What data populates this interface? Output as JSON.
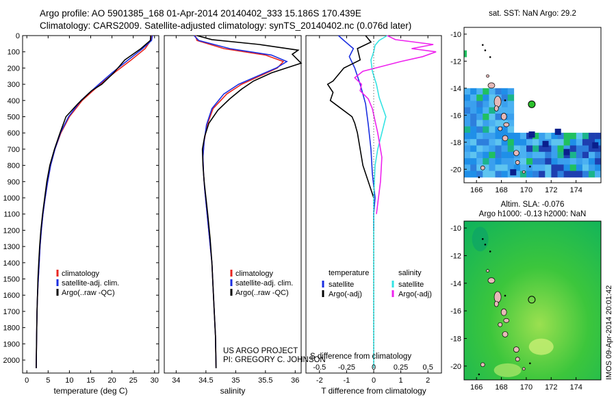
{
  "header": {
    "line1": "Argo profile: AO 5901385_168 01-Apr-2014 20140402_333 15.186S 170.439E",
    "line2": "Climatology: CARS2009. Satellite-adjusted climatology: synTS_20140402.nc (0.076d later)"
  },
  "colors": {
    "climatology": "#e8251f",
    "satellite": "#1a2ee0",
    "argo": "#000000",
    "salinity_satellite": "#33e3e3",
    "salinity_argo": "#ee22ee"
  },
  "texts": {
    "credit1": "US ARGO PROJECT",
    "credit2": "PI: GREGORY C. JOHNSON",
    "stamp": "IMOS 09-Apr-2014 20:01:42"
  },
  "chart_data": [
    {
      "type": "line",
      "id": "temperature",
      "xlabel": "temperature (deg C)",
      "ylabel": "",
      "xlim": [
        -1,
        31
      ],
      "ylim": [
        2080,
        0
      ],
      "xticks": [
        0,
        5,
        10,
        15,
        20,
        25,
        30
      ],
      "yticks": [
        0,
        100,
        200,
        300,
        400,
        500,
        600,
        700,
        800,
        900,
        1000,
        1100,
        1200,
        1300,
        1400,
        1500,
        1600,
        1700,
        1800,
        1900,
        2000
      ],
      "legend": [
        "climatology",
        "satellite-adj. clim.",
        "Argo(..raw -QC)"
      ],
      "legend_position": "lower-center",
      "series": [
        {
          "name": "climatology",
          "color": "#e8251f",
          "x": [
            29.2,
            29.1,
            27.8,
            24.5,
            20.5,
            16.8,
            13.0,
            10.0,
            8.0,
            6.6,
            5.6,
            4.9,
            4.3,
            3.8,
            3.4,
            3.1,
            2.9,
            2.7,
            2.5,
            2.4,
            2.3,
            2.2
          ],
          "y": [
            0,
            30,
            80,
            150,
            230,
            310,
            400,
            500,
            600,
            700,
            800,
            900,
            1000,
            1100,
            1200,
            1300,
            1400,
            1500,
            1600,
            1700,
            1850,
            2050
          ]
        },
        {
          "name": "satellite-adj. clim.",
          "color": "#1a2ee0",
          "x": [
            29.5,
            29.3,
            27.2,
            23.8,
            20.0,
            16.5,
            12.7,
            9.8,
            7.9,
            6.6,
            5.6,
            4.9,
            4.3,
            3.8,
            3.4,
            3.1,
            2.9,
            2.7,
            2.5,
            2.4,
            2.3,
            2.2
          ],
          "y": [
            0,
            30,
            80,
            150,
            230,
            310,
            400,
            500,
            600,
            700,
            800,
            900,
            1000,
            1100,
            1200,
            1300,
            1400,
            1500,
            1600,
            1700,
            1850,
            2050
          ]
        },
        {
          "name": "Argo(..raw -QC)",
          "color": "#000000",
          "x": [
            29.1,
            29.0,
            26.8,
            23.0,
            20.4,
            17.6,
            15.2,
            12.0,
            9.2,
            7.8,
            6.5,
            5.4,
            4.7,
            4.2,
            3.7,
            3.3,
            3.0,
            2.8,
            2.6,
            2.5,
            2.4,
            2.3,
            2.2
          ],
          "y": [
            0,
            30,
            80,
            150,
            230,
            300,
            340,
            420,
            500,
            600,
            700,
            800,
            900,
            1000,
            1100,
            1200,
            1300,
            1400,
            1500,
            1600,
            1700,
            1850,
            2050
          ]
        }
      ]
    },
    {
      "type": "line",
      "id": "salinity",
      "xlabel": "salinity",
      "ylabel": "",
      "xlim": [
        33.8,
        36.1
      ],
      "ylim": [
        2080,
        0
      ],
      "xticks": [
        34,
        34.5,
        35,
        35.5,
        36
      ],
      "legend": [
        "climatology",
        "satellite-adj. clim.",
        "Argo(..raw -QC)"
      ],
      "legend_position": "lower-center",
      "series": [
        {
          "name": "climatology",
          "color": "#e8251f",
          "x": [
            34.32,
            34.35,
            34.8,
            35.5,
            35.8,
            35.7,
            35.4,
            35.1,
            34.85,
            34.62,
            34.52,
            34.47,
            34.45,
            34.46,
            34.48,
            34.52,
            34.56,
            34.6,
            34.62,
            34.64,
            34.66,
            34.67
          ],
          "y": [
            0,
            30,
            80,
            120,
            160,
            200,
            250,
            300,
            360,
            450,
            550,
            650,
            750,
            850,
            950,
            1100,
            1250,
            1400,
            1550,
            1700,
            1850,
            2050
          ]
        },
        {
          "name": "satellite-adj. clim.",
          "color": "#1a2ee0",
          "x": [
            34.3,
            34.38,
            34.9,
            35.6,
            35.86,
            35.68,
            35.36,
            35.05,
            34.8,
            34.6,
            34.51,
            34.47,
            34.45,
            34.46,
            34.48,
            34.52,
            34.56,
            34.6,
            34.62,
            34.64,
            34.66,
            34.67
          ],
          "y": [
            0,
            30,
            80,
            120,
            160,
            200,
            250,
            300,
            360,
            450,
            550,
            650,
            750,
            850,
            950,
            1100,
            1250,
            1400,
            1550,
            1700,
            1850,
            2050
          ]
        },
        {
          "name": "Argo(..raw -QC)",
          "color": "#000000",
          "x": [
            34.35,
            34.6,
            35.4,
            36.05,
            35.95,
            36.1,
            35.6,
            35.3,
            35.1,
            34.9,
            34.7,
            34.55,
            34.48,
            34.44,
            34.45,
            34.47,
            34.5,
            34.53,
            34.57,
            34.6,
            34.62,
            34.64,
            34.66,
            34.67
          ],
          "y": [
            0,
            25,
            55,
            90,
            115,
            170,
            230,
            280,
            330,
            390,
            460,
            540,
            620,
            700,
            800,
            900,
            1000,
            1100,
            1250,
            1400,
            1550,
            1700,
            1850,
            2050
          ]
        }
      ]
    },
    {
      "type": "line",
      "id": "difference",
      "xlabel": "T difference from climatology",
      "xlabel2": "S difference from climatology",
      "ylabel": "",
      "xlim": [
        -2.5,
        2.5
      ],
      "ylim": [
        2080,
        0
      ],
      "xticks_T": [
        -2,
        -1,
        0,
        1,
        2
      ],
      "xticks_S": [
        -0.5,
        -0.25,
        0,
        0.25,
        0.5
      ],
      "xtick_labels_S": [
        "-0.5",
        "-0.25",
        "0",
        "0.25",
        "0.5"
      ],
      "legend_temperature_title": "temperature",
      "legend_salinity_title": "salinity",
      "legend": [
        "satellite",
        "Argo(-adj)",
        "satellite",
        "Argo(-adj)"
      ],
      "legend_position": "lower-center",
      "series": [
        {
          "name": "satellite",
          "group": "temperature",
          "color": "#1a2ee0",
          "x": [
            -1.3,
            -1.1,
            -0.75,
            -0.9,
            -0.7,
            -0.5,
            -0.3,
            -0.2,
            -0.1,
            -0.05,
            0.05,
            0.0,
            0.0
          ],
          "y": [
            0,
            30,
            80,
            130,
            200,
            300,
            420,
            550,
            700,
            850,
            1000,
            1100,
            1200
          ]
        },
        {
          "name": "Argo(-adj)",
          "group": "temperature",
          "color": "#000000",
          "x": [
            -0.3,
            -0.1,
            -0.6,
            -0.5,
            -1.1,
            -1.5,
            -1.7,
            -1.5,
            -1.6,
            -1.2,
            -0.8,
            -0.7,
            -0.6,
            -0.5,
            -0.4,
            -0.2,
            0.0
          ],
          "y": [
            0,
            40,
            80,
            150,
            200,
            280,
            300,
            350,
            400,
            450,
            500,
            540,
            600,
            700,
            800,
            900,
            1000
          ]
        },
        {
          "name": "satellite",
          "group": "salinity",
          "color": "#33e3e3",
          "x": [
            0.5,
            0.2,
            0.05,
            0.0,
            -0.1,
            -0.05,
            0.1,
            0.2,
            0.45,
            0.3,
            0.15,
            0.05,
            0.0,
            0.0,
            0.0,
            0.0
          ],
          "y": [
            0,
            30,
            60,
            100,
            150,
            220,
            300,
            380,
            500,
            600,
            700,
            800,
            1000,
            1300,
            1700,
            2050
          ]
        },
        {
          "name": "Argo(-adj)",
          "group": "salinity",
          "color": "#ee22ee",
          "x": [
            0.5,
            0.8,
            2.2,
            1.4,
            2.3,
            1.8,
            1.0,
            0.3,
            -0.4,
            -0.7,
            -0.45,
            -0.5,
            -0.2,
            -0.05,
            0.15,
            0.3,
            0.25,
            0.1
          ],
          "y": [
            0,
            25,
            55,
            80,
            100,
            130,
            160,
            190,
            220,
            260,
            300,
            340,
            390,
            450,
            600,
            750,
            900,
            1100
          ]
        }
      ]
    },
    {
      "type": "heatmap",
      "id": "sst-map",
      "title": "sat. SST: NaN Argo: 29.2",
      "xticks": [
        166,
        168,
        170,
        172,
        174
      ],
      "yticks": [
        -10,
        -12,
        -14,
        -16,
        -18,
        -20
      ],
      "xlim": [
        165,
        176
      ],
      "ylim": [
        -21,
        -9.5
      ],
      "argo_position": [
        170.44,
        -15.19
      ]
    },
    {
      "type": "heatmap",
      "id": "sla-map",
      "title_line1": "Altim. SLA: -0.076",
      "title_line2": "Argo h1000: -0.13 h2000: NaN",
      "xticks": [
        166,
        168,
        170,
        172,
        174
      ],
      "yticks": [
        -10,
        -12,
        -14,
        -16,
        -18,
        -20
      ],
      "xlim": [
        165,
        176
      ],
      "ylim": [
        -21,
        -9.5
      ],
      "argo_position": [
        170.44,
        -15.19
      ]
    }
  ]
}
